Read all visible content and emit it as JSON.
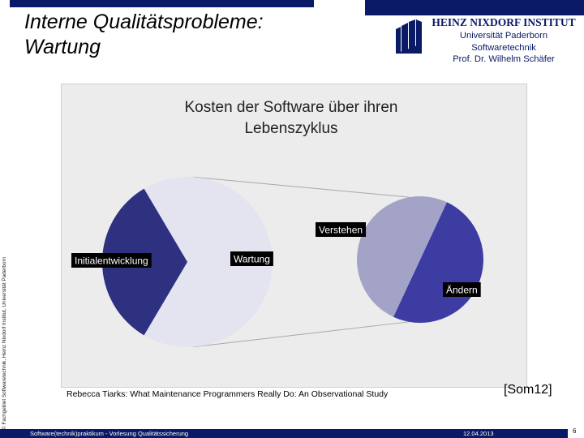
{
  "slide": {
    "title_line1": "Interne Qualitätsprobleme:",
    "title_line2": "Wartung",
    "side_text": "© Fachgebiet Softwaretechnik, Heinz Nixdorf Institut, Universität Paderborn",
    "citation": "Rebecca Tiarks: What Maintenance Programmers Really Do: An Observational Study",
    "source_ref": "[Som12]",
    "footer_left": "Software(technik)praktikum - Vorlesung Qualitätssicherung",
    "footer_date": "12.04.2013",
    "page_number": "6"
  },
  "logo": {
    "name": "HEINZ NIXDORF INSTITUT",
    "lines": [
      "Universität Paderborn",
      "Softwaretechnik",
      "Prof. Dr. Wilhelm Schäfer"
    ]
  },
  "colors": {
    "bar": "#0a1a66",
    "initialentwicklung": "#2e3080",
    "wartung": "#e4e4f1",
    "verstehen": "#3c3ca3",
    "aendern": "#a3a3c8",
    "label_bg": "#000000"
  },
  "chart_data": {
    "type": "pie",
    "title_lines": [
      "Kosten der Software über ihren",
      "Lebenszyklus"
    ],
    "main_pie": {
      "slices": [
        {
          "name": "Initialentwicklung",
          "value": 33
        },
        {
          "name": "Wartung",
          "value": 67
        }
      ]
    },
    "secondary_pie": {
      "parent": "Wartung",
      "slices": [
        {
          "name": "Verstehen",
          "value": 50
        },
        {
          "name": "Ändern",
          "value": 50
        }
      ]
    }
  }
}
